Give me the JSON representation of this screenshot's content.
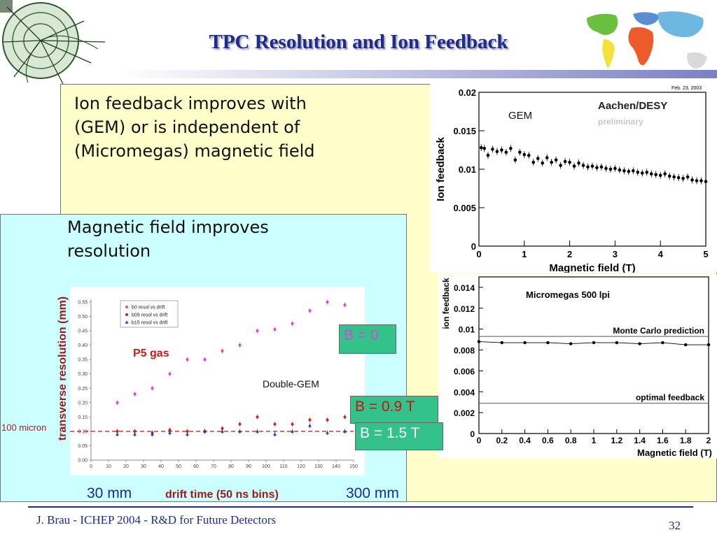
{
  "slide": {
    "title": "TPC Resolution and Ion Feedback",
    "ion_text": "Ion feedback improves with (GEM) or is independent of (Micromegas) magnetic field",
    "res_text": "Magnetic field improves resolution",
    "footer": "J. Brau - ICHEP 2004 - R&D for Future Detectors",
    "page_number": "32",
    "label_30mm": "30 mm",
    "label_300mm": "300 mm",
    "label_100micron": "100 micron",
    "tag_b0": "B = 0",
    "tag_b09": "B = 0.9 T",
    "tag_b15": "B = 1.5 T",
    "colors": {
      "title": "#1c2b8c",
      "yellow": "#ffffcc",
      "cyan": "#ccffff",
      "tag_green": "#33c28a",
      "tag_b0_text": "#d24bd2",
      "tag_b09_text": "#cc1010"
    }
  },
  "chart_data": [
    {
      "type": "scatter",
      "id": "gem",
      "title": "Aachen/DESY",
      "subtitle": "preliminary",
      "annotation": "GEM",
      "date": "Feb. 23, 2003",
      "xlabel": "Magnetic field (T)",
      "ylabel": "Ion feedback",
      "xlim": [
        0,
        5
      ],
      "ylim": [
        0,
        0.02
      ],
      "xticks": [
        "0",
        "1",
        "2",
        "3",
        "4",
        "5"
      ],
      "yticks": [
        "0",
        "0.005",
        "0.01",
        "0.015",
        "0.02"
      ],
      "points": [
        [
          0.05,
          0.0128
        ],
        [
          0.12,
          0.0127
        ],
        [
          0.2,
          0.0118
        ],
        [
          0.3,
          0.0126
        ],
        [
          0.4,
          0.0123
        ],
        [
          0.5,
          0.0125
        ],
        [
          0.6,
          0.0122
        ],
        [
          0.7,
          0.0127
        ],
        [
          0.8,
          0.0112
        ],
        [
          0.9,
          0.0122
        ],
        [
          1.0,
          0.0119
        ],
        [
          1.1,
          0.0118
        ],
        [
          1.2,
          0.0109
        ],
        [
          1.3,
          0.0114
        ],
        [
          1.4,
          0.0108
        ],
        [
          1.5,
          0.0115
        ],
        [
          1.6,
          0.0109
        ],
        [
          1.7,
          0.0112
        ],
        [
          1.8,
          0.0105
        ],
        [
          1.9,
          0.011
        ],
        [
          2.0,
          0.0109
        ],
        [
          2.1,
          0.0104
        ],
        [
          2.2,
          0.0108
        ],
        [
          2.3,
          0.0105
        ],
        [
          2.4,
          0.0103
        ],
        [
          2.5,
          0.0104
        ],
        [
          2.6,
          0.0102
        ],
        [
          2.7,
          0.0103
        ],
        [
          2.8,
          0.0101
        ],
        [
          2.9,
          0.01
        ],
        [
          3.0,
          0.0101
        ],
        [
          3.1,
          0.0099
        ],
        [
          3.2,
          0.0098
        ],
        [
          3.3,
          0.0097
        ],
        [
          3.4,
          0.0098
        ],
        [
          3.5,
          0.0096
        ],
        [
          3.6,
          0.0095
        ],
        [
          3.7,
          0.0096
        ],
        [
          3.8,
          0.0094
        ],
        [
          3.9,
          0.0093
        ],
        [
          4.0,
          0.0092
        ],
        [
          4.1,
          0.0094
        ],
        [
          4.2,
          0.0091
        ],
        [
          4.3,
          0.009
        ],
        [
          4.4,
          0.0089
        ],
        [
          4.5,
          0.0088
        ],
        [
          4.6,
          0.009
        ],
        [
          4.7,
          0.0086
        ],
        [
          4.8,
          0.0085
        ],
        [
          4.9,
          0.0085
        ],
        [
          5.0,
          0.0084
        ]
      ]
    },
    {
      "type": "line",
      "id": "micromegas",
      "title": "Micromegas 500 lpi",
      "xlabel": "Magnetic field (T)",
      "ylabel": "ion feedback",
      "xlim": [
        0,
        2
      ],
      "ylim": [
        0,
        0.015
      ],
      "xticks": [
        "0",
        "0.2",
        "0.4",
        "0.6",
        "0.8",
        "1",
        "1.2",
        "1.4",
        "1.6",
        "1.8",
        "2"
      ],
      "yticks": [
        "0",
        "0.002",
        "0.004",
        "0.006",
        "0.008",
        "0.01",
        "0.012",
        "0.014"
      ],
      "x": [
        0,
        0.2,
        0.4,
        0.6,
        0.8,
        1.0,
        1.2,
        1.4,
        1.6,
        1.8,
        2.0
      ],
      "y": [
        0.0088,
        0.0087,
        0.0087,
        0.0087,
        0.0086,
        0.0087,
        0.0087,
        0.0086,
        0.0087,
        0.0085,
        0.0085
      ],
      "reference_lines": [
        {
          "label": "Monte Carlo prediction",
          "y": 0.0093
        },
        {
          "label": "optimal feedback",
          "y": 0.0029
        }
      ]
    },
    {
      "type": "scatter",
      "id": "resolution",
      "xlabel": "drift time (50 ns bins)",
      "ylabel": "transverse resolution (mm)",
      "xlim": [
        0,
        150
      ],
      "ylim": [
        0,
        0.55
      ],
      "xticks": [
        "0",
        "10",
        "20",
        "30",
        "40",
        "50",
        "60",
        "70",
        "80",
        "90",
        "100",
        "110",
        "120",
        "130",
        "140",
        "150"
      ],
      "yticks": [
        "0.00",
        "0.05",
        "0.10",
        "0.15",
        "0.20",
        "0.25",
        "0.30",
        "0.35",
        "0.40",
        "0.45",
        "0.50",
        "0.55"
      ],
      "annotations": [
        "P5 gas",
        "Double-GEM"
      ],
      "threshold": 0.1,
      "series": [
        {
          "name": "b0 resol vs drift",
          "color": "#e040e0",
          "marker": "circle",
          "x": [
            15,
            25,
            35,
            45,
            55,
            65,
            75,
            85,
            95,
            105,
            115,
            125,
            135,
            145
          ],
          "y": [
            0.2,
            0.23,
            0.25,
            0.3,
            0.35,
            0.35,
            0.38,
            0.4,
            0.45,
            0.455,
            0.475,
            0.52,
            0.55,
            0.54
          ]
        },
        {
          "name": "b09 resol vs drift",
          "color": "#cc2222",
          "marker": "circle",
          "x": [
            15,
            25,
            35,
            45,
            55,
            65,
            75,
            85,
            95,
            105,
            115,
            125,
            135,
            145
          ],
          "y": [
            0.1,
            0.1,
            0.095,
            0.105,
            0.1,
            0.1,
            0.11,
            0.125,
            0.15,
            0.125,
            0.125,
            0.14,
            0.14,
            0.15
          ]
        },
        {
          "name": "b15 resol vs drift",
          "color": "#2233cc",
          "marker": "triangle",
          "x": [
            15,
            25,
            35,
            45,
            55,
            65,
            75,
            85,
            95,
            105,
            115,
            125,
            135,
            145
          ],
          "y": [
            0.09,
            0.09,
            0.09,
            0.095,
            0.09,
            0.1,
            0.1,
            0.1,
            0.1,
            0.09,
            0.1,
            0.12,
            0.095,
            0.1
          ]
        }
      ]
    }
  ]
}
